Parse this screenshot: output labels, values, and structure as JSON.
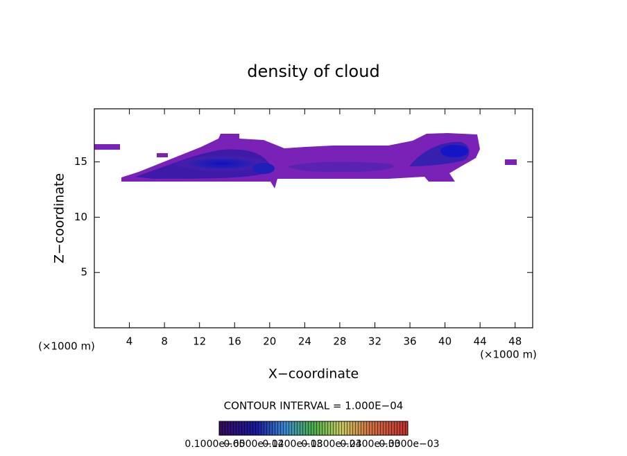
{
  "chart_data": {
    "type": "contour",
    "title": "density of cloud",
    "xlabel": "X−coordinate",
    "ylabel": "Z−coordinate",
    "x_unit": "(×1000 m)",
    "y_unit": "(×1000 m)",
    "xlim": [
      0,
      50
    ],
    "xticks": [
      4,
      8,
      12,
      16,
      20,
      24,
      28,
      32,
      36,
      40,
      44,
      48
    ],
    "ylim": [
      0,
      19.8
    ],
    "yticks": [
      5,
      10,
      15
    ],
    "annotation": "CONTOUR INTERVAL = 1.000E−04",
    "colorbar_labels": [
      "0.1000e−05",
      "0.6000e−04",
      "0.1200e−03",
      "0.1800e−03",
      "0.2400e−03",
      "0.3000e−03"
    ]
  }
}
